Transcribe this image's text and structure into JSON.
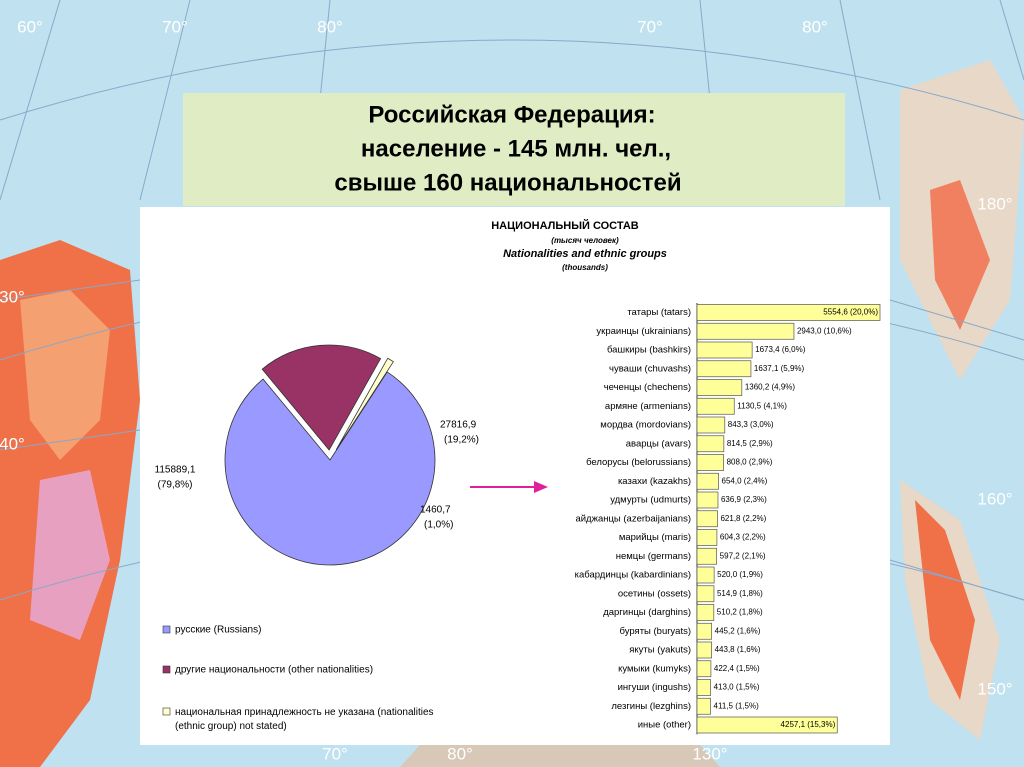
{
  "slide_title": [
    "Российская Федерация:",
    "население - 145 млн. чел.,",
    "свыше 160 национальностей"
  ],
  "map_labels": [
    "60°",
    "70°",
    "80°",
    "70°",
    "80°",
    "180°",
    "30°",
    "40°",
    "160°",
    "150°",
    "70°",
    "80°",
    "130°"
  ],
  "chart_data": [
    {
      "type": "pie",
      "categories": [
        "русские (Russians)",
        "другие национальности (other nationalities)",
        "национальная принадлежность не указана (nationalities (ethnic group) not stated)"
      ],
      "values": [
        115889.1,
        27816.9,
        1460.7
      ],
      "value_labels": [
        "115889,1",
        "27816,9",
        "1460,7"
      ],
      "percent_labels": [
        "(79,8%)",
        "(19,2%)",
        "(1,0%)"
      ],
      "colors": [
        "#9999ff",
        "#993366",
        "#ffffcc"
      ]
    },
    {
      "type": "hbar",
      "title": "НАЦИОНАЛЬНЫЙ СОСТАВ",
      "subtitle": [
        "(тысяч человек)",
        "Nationalities and ethnic groups",
        "(thousands)"
      ],
      "color": "#ffff99",
      "categories": [
        "татары (tatars)",
        "украинцы (ukrainians)",
        "башкиры (bashkirs)",
        "чуваши (chuvashs)",
        "чеченцы (chechens)",
        "армяне (armenians)",
        "мордва (mordovians)",
        "аварцы (avars)",
        "белорусы (belorussians)",
        "казахи (kazakhs)",
        "удмурты (udmurts)",
        "айджанцы (azerbaijanians)",
        "марийцы (maris)",
        "немцы (germans)",
        "кабардинцы (kabardinians)",
        "осетины (ossets)",
        "даргинцы (darghins)",
        "буряты (buryats)",
        "якуты (yakuts)",
        "кумыки (kumyks)",
        "ингуши (ingushs)",
        "лезгины (lezghins)",
        "иные (other)"
      ],
      "values": [
        5554.6,
        2943.0,
        1673.4,
        1637.1,
        1360.2,
        1130.5,
        843.3,
        814.5,
        808.0,
        654.0,
        636.9,
        621.8,
        604.3,
        597.2,
        520.0,
        514.9,
        510.2,
        445.2,
        443.8,
        422.4,
        413.0,
        411.5,
        4257.1
      ],
      "value_labels": [
        "5554,6 (20,0%)",
        "2943,0 (10,6%)",
        "1673,4 (6,0%)",
        "1637,1 (5,9%)",
        "1360,2 (4,9%)",
        "1130,5 (4,1%)",
        "843,3 (3,0%)",
        "814,5 (2,9%)",
        "808,0 (2,9%)",
        "654,0 (2,4%)",
        "636,9 (2,3%)",
        "621,8 (2,2%)",
        "604,3 (2,2%)",
        "597,2 (2,1%)",
        "520,0 (1,9%)",
        "514,9 (1,8%)",
        "510,2 (1,8%)",
        "445,2 (1,6%)",
        "443,8 (1,6%)",
        "422,4 (1,5%)",
        "413,0 (1,5%)",
        "411,5 (1,5%)",
        "4257,1 (15,3%)"
      ]
    }
  ]
}
